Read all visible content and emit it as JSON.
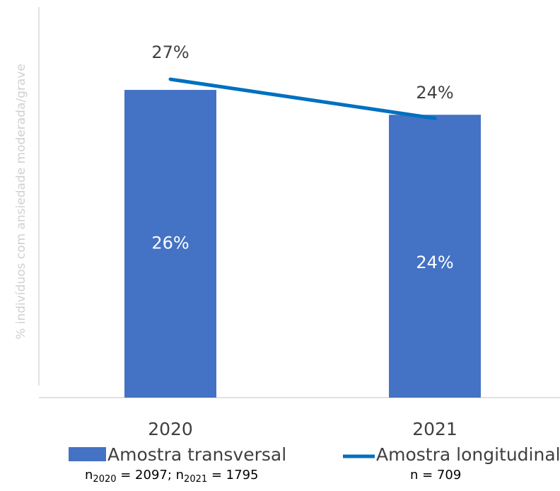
{
  "chart_data": {
    "type": "bar",
    "y_label": "% indivíduos com ansiedade moderada/grave",
    "categories": [
      "2020",
      "2021"
    ],
    "ylim": [
      0,
      33
    ],
    "series": [
      {
        "name": "Amostra transversal",
        "type": "bar",
        "color": "#4472c4",
        "values": [
          26,
          23.9
        ],
        "value_labels": [
          "26%",
          "24%"
        ],
        "note": [
          "n",
          "2020",
          " = 2097; n",
          "2021",
          " = 1795"
        ]
      },
      {
        "name": "Amostra longitudinal",
        "type": "line",
        "color": "#0070c0",
        "values": [
          26.9,
          23.6
        ],
        "value_labels": [
          "27%",
          "24%"
        ],
        "note": [
          "n = 709"
        ]
      }
    ]
  }
}
